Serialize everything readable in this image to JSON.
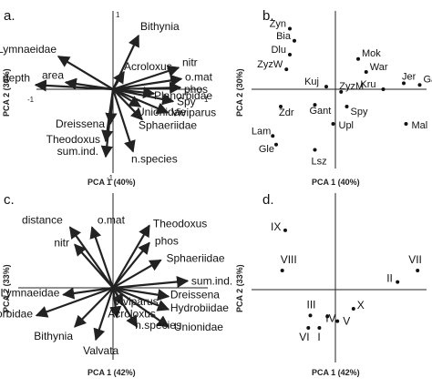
{
  "chart_data": [
    {
      "type": "biplot",
      "panel_label": "a.",
      "xlabel": "PCA 1 (40%)",
      "ylabel": "PCA 2 (30%)",
      "tick_labels": {
        "top": "1",
        "left": "-1",
        "right": "1",
        "bottom": "-1"
      },
      "xlim": [
        -1,
        1
      ],
      "ylim": [
        -1,
        1
      ],
      "vectors": [
        {
          "name": "Bithynia",
          "x": 0.28,
          "y": 0.62
        },
        {
          "name": "Lymnaeidae",
          "x": -0.6,
          "y": 0.38
        },
        {
          "name": "area",
          "x": -0.52,
          "y": 0.08
        },
        {
          "name": "depth",
          "x": -0.85,
          "y": 0.05
        },
        {
          "name": "Acroloxus",
          "x": 0.12,
          "y": 0.2
        },
        {
          "name": "nitr",
          "x": 0.72,
          "y": 0.25
        },
        {
          "name": "o.mat",
          "x": 0.75,
          "y": 0.12
        },
        {
          "name": "phos",
          "x": 0.74,
          "y": 0.02
        },
        {
          "name": "Planorbidae",
          "x": 0.45,
          "y": -0.05
        },
        {
          "name": "Unionidae",
          "x": 0.3,
          "y": -0.2
        },
        {
          "name": "Spy",
          "x": 0.66,
          "y": -0.14
        },
        {
          "name": "Viviparus",
          "x": 0.6,
          "y": -0.27
        },
        {
          "name": "Sphaeriidae",
          "x": 0.32,
          "y": -0.35
        },
        {
          "name": "Dreissena",
          "x": -0.03,
          "y": -0.4
        },
        {
          "name": "Theodoxus",
          "x": -0.08,
          "y": -0.6
        },
        {
          "name": "sum.ind.",
          "x": -0.08,
          "y": -0.78
        },
        {
          "name": "n.species",
          "x": 0.22,
          "y": -0.72
        }
      ]
    },
    {
      "type": "scatter",
      "panel_label": "b.",
      "xlabel": "PCA 1 (40%)",
      "ylabel": "PCA 2 (30%)",
      "points": [
        {
          "name": "Zyn",
          "x": -0.4,
          "y": 0.7
        },
        {
          "name": "Bia",
          "x": -0.36,
          "y": 0.56
        },
        {
          "name": "Dlu",
          "x": -0.4,
          "y": 0.4
        },
        {
          "name": "ZyzW",
          "x": -0.43,
          "y": 0.23
        },
        {
          "name": "Mok",
          "x": 0.2,
          "y": 0.35
        },
        {
          "name": "War",
          "x": 0.27,
          "y": 0.2
        },
        {
          "name": "Jer",
          "x": 0.6,
          "y": 0.07
        },
        {
          "name": "Gar",
          "x": 0.74,
          "y": 0.05
        },
        {
          "name": "Kru",
          "x": 0.42,
          "y": 0.0
        },
        {
          "name": "Kuj",
          "x": -0.08,
          "y": 0.03
        },
        {
          "name": "ZyzM",
          "x": 0.05,
          "y": -0.03
        },
        {
          "name": "Zdr",
          "x": -0.48,
          "y": -0.2
        },
        {
          "name": "Gant",
          "x": -0.18,
          "y": -0.18
        },
        {
          "name": "Spy",
          "x": 0.1,
          "y": -0.2
        },
        {
          "name": "Upl",
          "x": -0.02,
          "y": -0.4
        },
        {
          "name": "Mal",
          "x": 0.62,
          "y": -0.4
        },
        {
          "name": "Lam",
          "x": -0.55,
          "y": -0.54
        },
        {
          "name": "Gle",
          "x": -0.52,
          "y": -0.64
        },
        {
          "name": "Lsz",
          "x": -0.18,
          "y": -0.7
        }
      ]
    },
    {
      "type": "biplot",
      "panel_label": "c.",
      "xlabel": "PCA 1 (42%)",
      "ylabel": "PCA 2 (33%)",
      "xlim": [
        -1,
        1
      ],
      "ylim": [
        -1,
        1
      ],
      "vectors": [
        {
          "name": "distance",
          "x": -0.45,
          "y": 0.7
        },
        {
          "name": "o.mat",
          "x": -0.22,
          "y": 0.7
        },
        {
          "name": "nitr",
          "x": -0.4,
          "y": 0.5
        },
        {
          "name": "Theodoxus",
          "x": 0.38,
          "y": 0.72
        },
        {
          "name": "phos",
          "x": 0.38,
          "y": 0.52
        },
        {
          "name": "Sphaeriidae",
          "x": 0.5,
          "y": 0.32
        },
        {
          "name": "sum.ind.",
          "x": 0.78,
          "y": 0.08
        },
        {
          "name": "Lymnaeidae",
          "x": -0.52,
          "y": -0.08
        },
        {
          "name": "Dreissena",
          "x": 0.58,
          "y": -0.1
        },
        {
          "name": "Planorbidae",
          "x": -0.8,
          "y": -0.32
        },
        {
          "name": "Viviparus",
          "x": 0.1,
          "y": -0.2
        },
        {
          "name": "Hydrobiidae",
          "x": 0.58,
          "y": -0.25
        },
        {
          "name": "Acroloxus",
          "x": 0.04,
          "y": -0.34
        },
        {
          "name": "Unionidae",
          "x": 0.58,
          "y": -0.45
        },
        {
          "name": "n.species",
          "x": 0.25,
          "y": -0.45
        },
        {
          "name": "Bithynia",
          "x": -0.4,
          "y": -0.45
        },
        {
          "name": "Valvata",
          "x": -0.18,
          "y": -0.6
        }
      ]
    },
    {
      "type": "scatter",
      "panel_label": "d.",
      "xlabel": "PCA 1 (42%)",
      "ylabel": "PCA 2 (33%)",
      "points": [
        {
          "name": "IX",
          "x": -0.5,
          "y": 0.62
        },
        {
          "name": "VIII",
          "x": -0.53,
          "y": 0.2
        },
        {
          "name": "VII",
          "x": 0.82,
          "y": 0.2
        },
        {
          "name": "II",
          "x": 0.62,
          "y": 0.08
        },
        {
          "name": "X",
          "x": 0.18,
          "y": -0.2
        },
        {
          "name": "III",
          "x": -0.25,
          "y": -0.27
        },
        {
          "name": "IV",
          "x": -0.08,
          "y": -0.28
        },
        {
          "name": "V",
          "x": 0.02,
          "y": -0.33
        },
        {
          "name": "I",
          "x": -0.16,
          "y": -0.4
        },
        {
          "name": "VI",
          "x": -0.27,
          "y": -0.4
        }
      ]
    }
  ]
}
